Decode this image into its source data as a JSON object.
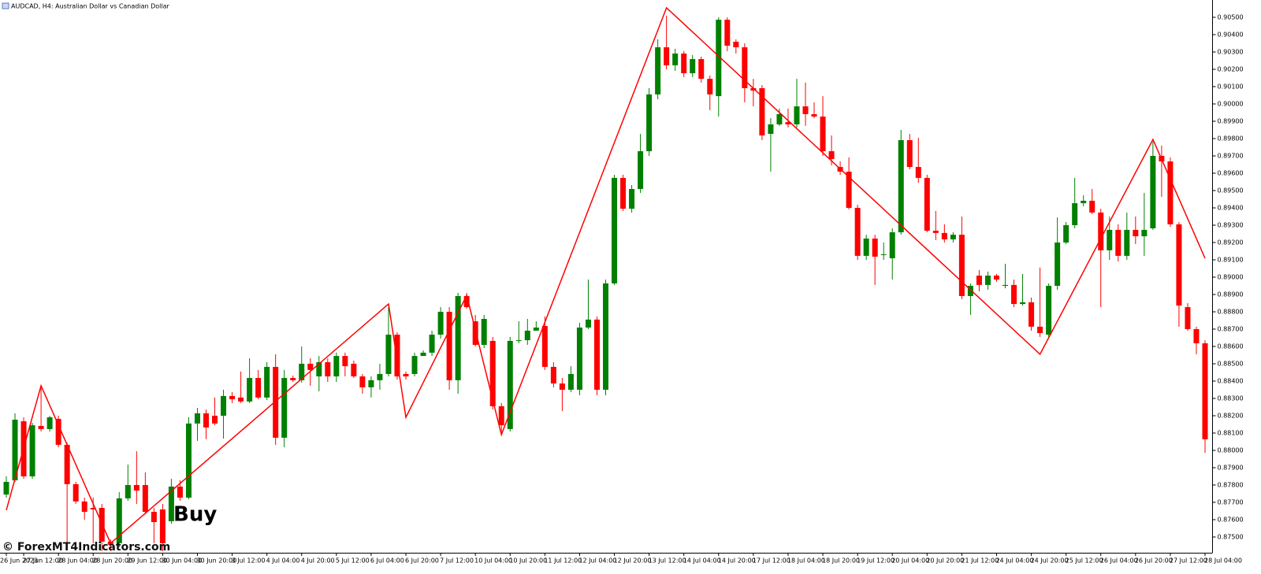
{
  "chart_data": {
    "type": "candlestick",
    "title": "AUDCAD, H4: Australian Dollar vs Canadian Dollar",
    "annotations": [
      "Buy"
    ],
    "watermark": "© ForexMT4Indicators.com",
    "up_color": "#008000",
    "down_color": "#ff0000",
    "categories": [
      "26 Jun 2023",
      null,
      "27 Jun 12:00",
      null,
      null,
      null,
      "28 Jun 04:00",
      null,
      null,
      null,
      "28 Jun 20:00",
      null,
      null,
      null,
      "29 Jun 12:00",
      null,
      null,
      null,
      "30 Jun 04:00",
      null,
      null,
      null,
      "30 Jun 20:00",
      null,
      null,
      null,
      "3 Jul 12:00",
      null,
      null,
      null,
      "4 Jul 04:00",
      null,
      null,
      null,
      "4 Jul 20:00",
      null,
      null,
      null,
      "5 Jul 12:00",
      null,
      null,
      null,
      "6 Jul 04:00",
      null,
      null,
      null,
      "6 Jul 20:00",
      null,
      null,
      null,
      "7 Jul 12:00",
      null,
      null,
      null,
      "10 Jul 04:00",
      null,
      null,
      null,
      "10 Jul 20:00",
      null,
      null,
      null,
      "11 Jul 12:00",
      null,
      null,
      null,
      "12 Jul 04:00",
      null,
      null,
      null,
      "12 Jul 20:00",
      null,
      null,
      null,
      "13 Jul 12:00",
      null,
      null,
      null,
      "14 Jul 04:00",
      null,
      null,
      null,
      "14 Jul 20:00",
      null,
      null,
      null,
      "17 Jul 12:00",
      null,
      null,
      null,
      "18 Jul 04:00",
      null,
      null,
      null,
      "18 Jul 20:00",
      null,
      null,
      null,
      "19 Jul 12:00",
      null,
      null,
      null,
      "20 Jul 04:00",
      null,
      null,
      null,
      "20 Jul 20:00",
      null,
      null,
      null,
      "21 Jul 12:00",
      null,
      null,
      null,
      "24 Jul 04:00",
      null,
      null,
      null,
      "24 Jul 20:00",
      null,
      null,
      null,
      "25 Jul 12:00",
      null,
      null,
      null,
      "26 Jul 04:00",
      null,
      null,
      null,
      "26 Jul 20:00",
      null,
      null,
      null,
      "27 Jul 12:00",
      null,
      null,
      null,
      "28 Jul 04:00"
    ],
    "open": [
      0.87745,
      0.87827,
      0.88168,
      0.8785,
      0.88141,
      0.88123,
      0.88182,
      0.88032,
      0.87805,
      0.87705,
      0.87668,
      0.87668,
      0.87473,
      0.87464,
      0.87723,
      0.878,
      0.878,
      0.87645,
      0.87659,
      0.87591,
      0.87791,
      0.87727,
      0.88155,
      0.88214,
      0.882,
      0.882,
      0.88314,
      0.88305,
      0.88282,
      0.88418,
      0.88305,
      0.88482,
      0.88073,
      0.88418,
      0.88405,
      0.885,
      0.88427,
      0.88509,
      0.88427,
      0.88545,
      0.885,
      0.88427,
      0.88364,
      0.88405,
      0.88441,
      0.88668,
      0.88441,
      0.88441,
      0.88545,
      0.88564,
      0.88668,
      0.888,
      0.88405,
      0.88891,
      0.88745,
      0.88609,
      0.88632,
      0.88255,
      0.88123,
      0.88632,
      0.88636,
      0.88691,
      0.88718,
      0.88482,
      0.88386,
      0.8835,
      0.8835,
      0.88709,
      0.88755,
      0.8835,
      0.88964,
      0.89573,
      0.89395,
      0.89509,
      0.89727,
      0.90055,
      0.90327,
      0.90223,
      0.90291,
      0.90177,
      0.90259,
      0.90145,
      0.90045,
      0.90486,
      0.90359,
      0.90327,
      0.90091,
      0.90091,
      0.89827,
      0.89882,
      0.89895,
      0.89882,
      0.89986,
      0.89941,
      0.89927,
      0.89727,
      0.89636,
      0.89609,
      0.894,
      0.89123,
      0.89223,
      0.89132,
      0.89109,
      0.89259,
      0.89791,
      0.89636,
      0.89573,
      0.89268,
      0.89255,
      0.89218,
      0.89245,
      0.88891,
      0.89009,
      0.88955,
      0.89009,
      0.8895,
      0.88955,
      0.88845,
      0.88855,
      0.88714,
      0.88668,
      0.8895,
      0.892,
      0.893,
      0.89427,
      0.89441,
      0.89373,
      0.89155,
      0.89273,
      0.89123,
      0.89273,
      0.89236,
      0.89282,
      0.897,
      0.89668,
      0.89305,
      0.88827,
      0.887,
      0.88618
    ],
    "high": [
      0.8785,
      0.88214,
      0.88191,
      0.88159,
      0.88373,
      0.882,
      0.882,
      0.88045,
      0.87818,
      0.87727,
      0.87727,
      0.87691,
      0.87486,
      0.87759,
      0.87918,
      0.87995,
      0.87873,
      0.87668,
      0.87691,
      0.87836,
      0.87827,
      0.88191,
      0.88245,
      0.88236,
      0.88305,
      0.8835,
      0.88336,
      0.88455,
      0.88532,
      0.88464,
      0.88509,
      0.88555,
      0.88464,
      0.88432,
      0.886,
      0.88532,
      0.88545,
      0.88532,
      0.88564,
      0.88564,
      0.88518,
      0.88441,
      0.88427,
      0.885,
      0.88827,
      0.88682,
      0.88455,
      0.88564,
      0.88577,
      0.88691,
      0.88827,
      0.88827,
      0.88909,
      0.88909,
      0.88782,
      0.88782,
      0.88655,
      0.88273,
      0.88655,
      0.88745,
      0.88759,
      0.88745,
      0.88773,
      0.88509,
      0.88418,
      0.88486,
      0.88736,
      0.88986,
      0.88773,
      0.88986,
      0.89591,
      0.89591,
      0.89532,
      0.89827,
      0.90091,
      0.90373,
      0.90509,
      0.90318,
      0.90305,
      0.90282,
      0.90273,
      0.90164,
      0.905,
      0.905,
      0.90373,
      0.9035,
      0.90145,
      0.90109,
      0.89918,
      0.89973,
      0.89973,
      0.90145,
      0.90123,
      0.90009,
      0.90045,
      0.89818,
      0.89668,
      0.89691,
      0.89418,
      0.89245,
      0.89245,
      0.892,
      0.89282,
      0.8985,
      0.89827,
      0.89805,
      0.89591,
      0.89382,
      0.89305,
      0.89259,
      0.8935,
      0.88964,
      0.89041,
      0.89032,
      0.89018,
      0.89077,
      0.88986,
      0.89018,
      0.88882,
      0.89055,
      0.88964,
      0.89345,
      0.89318,
      0.89573,
      0.89473,
      0.89509,
      0.89395,
      0.8935,
      0.89305,
      0.89373,
      0.8935,
      0.89486,
      0.89782,
      0.89759,
      0.89691,
      0.89318,
      0.8885,
      0.88714,
      0.88636
    ],
    "low": [
      0.87727,
      0.87818,
      0.87836,
      0.87836,
      0.88109,
      0.88109,
      0.88018,
      0.87464,
      0.87691,
      0.876,
      0.87464,
      0.87418,
      0.87418,
      0.87441,
      0.87709,
      0.87691,
      0.87632,
      0.87464,
      0.87418,
      0.87577,
      0.87709,
      0.87718,
      0.88055,
      0.88064,
      0.88145,
      0.88068,
      0.88273,
      0.88273,
      0.88273,
      0.88295,
      0.88291,
      0.88032,
      0.88018,
      0.88395,
      0.88391,
      0.88373,
      0.88341,
      0.88395,
      0.88395,
      0.88427,
      0.88418,
      0.88327,
      0.88305,
      0.8835,
      0.88427,
      0.88409,
      0.88409,
      0.88427,
      0.88545,
      0.88545,
      0.88645,
      0.8835,
      0.88327,
      0.88818,
      0.886,
      0.88591,
      0.88236,
      0.88091,
      0.88109,
      0.88618,
      0.88609,
      0.88691,
      0.88464,
      0.88364,
      0.88227,
      0.88336,
      0.88318,
      0.887,
      0.88318,
      0.88318,
      0.88955,
      0.89382,
      0.89373,
      0.89486,
      0.897,
      0.90027,
      0.902,
      0.90191,
      0.90155,
      0.90155,
      0.90123,
      0.89964,
      0.89927,
      0.90305,
      0.90291,
      0.90009,
      0.89986,
      0.89791,
      0.89609,
      0.89873,
      0.89864,
      0.89864,
      0.89873,
      0.89918,
      0.897,
      0.89645,
      0.89591,
      0.89391,
      0.891,
      0.891,
      0.88955,
      0.891,
      0.88986,
      0.89245,
      0.89623,
      0.89545,
      0.89259,
      0.89214,
      0.892,
      0.892,
      0.88873,
      0.88782,
      0.88918,
      0.88927,
      0.88973,
      0.88936,
      0.88827,
      0.88836,
      0.88691,
      0.88655,
      0.88655,
      0.88927,
      0.89191,
      0.89282,
      0.89409,
      0.89364,
      0.88827,
      0.891,
      0.89091,
      0.891,
      0.89191,
      0.89123,
      0.89273,
      0.89464,
      0.89291,
      0.88714,
      0.88691,
      0.88555,
      0.87986
    ],
    "close": [
      0.87818,
      0.88177,
      0.8785,
      0.88145,
      0.88123,
      0.88191,
      0.88032,
      0.87805,
      0.87705,
      0.87645,
      0.87659,
      0.87473,
      0.87455,
      0.87723,
      0.878,
      0.87768,
      0.87645,
      0.87586,
      0.87464,
      0.87791,
      0.87727,
      0.88155,
      0.88214,
      0.88132,
      0.88155,
      0.88314,
      0.88295,
      0.88282,
      0.88418,
      0.88305,
      0.88482,
      0.88073,
      0.88418,
      0.88405,
      0.885,
      0.88464,
      0.88509,
      0.88427,
      0.88545,
      0.88486,
      0.88427,
      0.88364,
      0.88405,
      0.88441,
      0.88668,
      0.88427,
      0.88427,
      0.88545,
      0.88564,
      0.88668,
      0.888,
      0.88405,
      0.88891,
      0.88827,
      0.88609,
      0.88759,
      0.88255,
      0.88145,
      0.88632,
      0.88636,
      0.88691,
      0.88709,
      0.88482,
      0.88386,
      0.8835,
      0.88441,
      0.88709,
      0.88755,
      0.8835,
      0.88964,
      0.89573,
      0.89395,
      0.89509,
      0.89727,
      0.90055,
      0.90327,
      0.90223,
      0.90291,
      0.90177,
      0.90259,
      0.90145,
      0.90055,
      0.90486,
      0.90336,
      0.90327,
      0.90091,
      0.90077,
      0.89818,
      0.89882,
      0.89941,
      0.89882,
      0.89986,
      0.89941,
      0.89927,
      0.89727,
      0.89682,
      0.89609,
      0.894,
      0.89123,
      0.89223,
      0.89118,
      0.89132,
      0.89259,
      0.89791,
      0.89636,
      0.89573,
      0.89268,
      0.89255,
      0.89218,
      0.89245,
      0.88891,
      0.8895,
      0.88955,
      0.89009,
      0.88986,
      0.88955,
      0.88845,
      0.88855,
      0.88714,
      0.88677,
      0.8895,
      0.892,
      0.893,
      0.89427,
      0.89441,
      0.89373,
      0.89155,
      0.89273,
      0.89123,
      0.89273,
      0.89236,
      0.89273,
      0.897,
      0.89668,
      0.89305,
      0.88836,
      0.887,
      0.88618,
      0.88064
    ],
    "zigzag": {
      "color": "#ff0000",
      "x": [
        0,
        4,
        12,
        44,
        46,
        53,
        57,
        76,
        119,
        132,
        138
      ],
      "values": [
        0.87655,
        0.88373,
        0.87464,
        0.88845,
        0.88191,
        0.88895,
        0.88091,
        0.90555,
        0.88555,
        0.89795,
        0.89109
      ]
    },
    "ylim": [
      0.87409,
      0.906
    ],
    "yticks": [
      {
        "value": 0.905,
        "label": "0.90500"
      },
      {
        "value": 0.904,
        "label": "0.90400"
      },
      {
        "value": 0.903,
        "label": "0.90300"
      },
      {
        "value": 0.902,
        "label": "0.90200"
      },
      {
        "value": 0.901,
        "label": "0.90100"
      },
      {
        "value": 0.9,
        "label": "0.90000"
      },
      {
        "value": 0.899,
        "label": "0.89900"
      },
      {
        "value": 0.898,
        "label": "0.89800"
      },
      {
        "value": 0.897,
        "label": "0.89700"
      },
      {
        "value": 0.896,
        "label": "0.89600"
      },
      {
        "value": 0.895,
        "label": "0.89500"
      },
      {
        "value": 0.894,
        "label": "0.89400"
      },
      {
        "value": 0.893,
        "label": "0.89300"
      },
      {
        "value": 0.892,
        "label": "0.89200"
      },
      {
        "value": 0.891,
        "label": "0.89100"
      },
      {
        "value": 0.89,
        "label": "0.89000"
      },
      {
        "value": 0.889,
        "label": "0.88900"
      },
      {
        "value": 0.888,
        "label": "0.88800"
      },
      {
        "value": 0.887,
        "label": "0.88700"
      },
      {
        "value": 0.886,
        "label": "0.88600"
      },
      {
        "value": 0.885,
        "label": "0.88500"
      },
      {
        "value": 0.884,
        "label": "0.88400"
      },
      {
        "value": 0.883,
        "label": "0.88300"
      },
      {
        "value": 0.882,
        "label": "0.88200"
      },
      {
        "value": 0.881,
        "label": "0.88100"
      },
      {
        "value": 0.88,
        "label": "0.88000"
      },
      {
        "value": 0.879,
        "label": "0.87900"
      },
      {
        "value": 0.878,
        "label": "0.87800"
      },
      {
        "value": 0.877,
        "label": "0.87700"
      },
      {
        "value": 0.876,
        "label": "0.87600"
      },
      {
        "value": 0.875,
        "label": "0.87500"
      }
    ]
  }
}
